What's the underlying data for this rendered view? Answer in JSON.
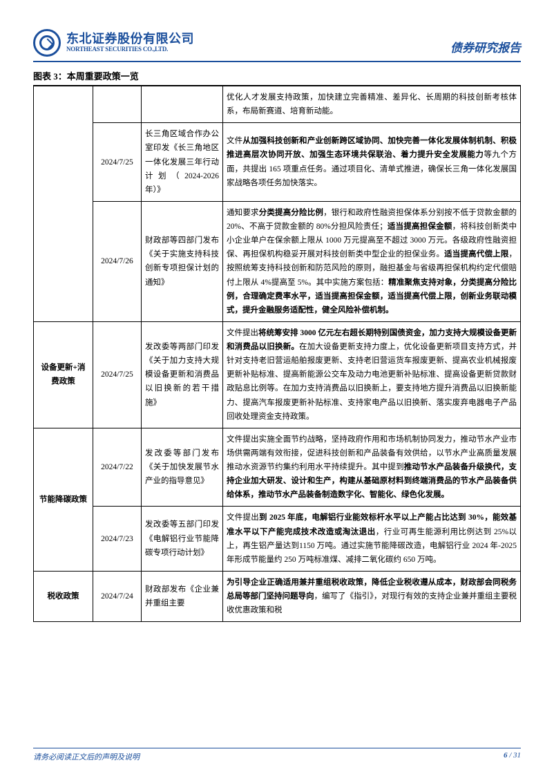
{
  "header": {
    "company_cn": "东北证券股份有限公司",
    "company_en": "NORTHEAST SECURITIES CO.,LTD.",
    "report_type": "债券研究报告"
  },
  "chart_title": "图表 3：本周重要政策一览",
  "rows": [
    {
      "category": "",
      "date": "",
      "source": "",
      "desc": "优化人才发展支持政策，加快建立完善精准、差异化、长周期的科技创新考核体系，布局新赛道、培育新动能。"
    },
    {
      "category": "",
      "date": "2024/7/25",
      "source": "长三角区域合作办公室印发《长三角地区一体化发展三年行动计划（2024-2026年）》",
      "desc": "文件<b>从加强科技创新和产业创新跨区域协同、加快完善一体化发展体制机制、积极推进高层次协同开放、加强生态环境共保联治、着力提升安全发展能力</b>等九个方面，共提出 165 项重点任务。通过项目化、清单式推进，确保长三角一体化发展国家战略各项任务加快落实。"
    },
    {
      "category": "",
      "date": "2024/7/26",
      "source": "财政部等四部门发布《关于实施支持科技创新专项担保计划的通知》",
      "desc": "通知要求<b>分类提高分险比例</b>，银行和政府性融资担保体系分别按不低于贷款金额的 20%、不高于贷款金额的 80%分担风险责任；<b>适当提高担保金额</b>，将科技创新类中小企业单户在保余额上限从 1000 万元提高至不超过 3000 万元。各级政府性融资担保、再担保机构稳妥开展对科技创新类中型企业的担保业务。<b>适当提高代偿上限</b>，按照统筹支持科技创新和防范风险的原则，融担基金与省级再担保机构约定代偿赔付上限从 4%提高至 5%。其中实施方案包括：<b>精准聚焦支持对象，分类提高分险比例，合理确定费率水平，适当提高担保金额，适当提高代偿上限，创新业务联动模式，提升金融服务适配性，健全风险补偿机制。</b>"
    },
    {
      "category": "设备更新+消费政策",
      "date": "2024/7/25",
      "source": "发改委等两部门印发《关于加力支持大规模设备更新和消费品以旧换新的若干措施》",
      "desc": "文件提出<b>将统筹安排 3000 亿元左右超长期特别国债资金，加力支持大规模设备更新和消费品以旧换新。</b>在加大设备更新支持力度上，优化设备更新项目支持方式，并针对支持老旧营运船舶报废更新、支持老旧营运货车报废更新、提高农业机械报废更新补贴标准、提高新能源公交车及动力电池更新补贴标准、提高设备更新贷款财政贴息比例等。在加力支持消费品以旧换新上，要支持地方提升消费品以旧换新能力、提高汽车报废更新补贴标准、支持家电产品以旧换新、落实废弃电器电子产品回收处理资金支持政策。"
    },
    {
      "category": "节能降碳政策",
      "date": "2024/7/22",
      "source": "发改委等部门发布《关于加快发展节水产业的指导意见》",
      "desc": "文件提出实施全面节约战略，坚持政府作用和市场机制协同发力，推动节水产业市场供需两端有效衔接，促进科技创新和产品装备有效供给，以节水产业高质量发展推动水资源节约集约利用水平持续提升。其中提到<b>推动节水产品装备升级换代，支持企业加大研发、设计和生产，构建从基础原材料到终端消费品的节水产品装备供给体系，推动节水产品装备制造数字化、智能化、绿色化发展。</b>"
    },
    {
      "category": "",
      "date": "2024/7/23",
      "source": "发改委等五部门印发《电解铝行业节能降碳专项行动计划》",
      "desc": "文件提出<b>到 2025 年底，电解铝行业能效标杆水平以上产能占比达到 30%，能效基准水平以下产能完成技术改造或淘汰退出</b>，行业可再生能源利用比例达到 25%以上，再生铝产量达到1150 万吨。通过实施节能降碳改造，电解铝行业 2024 年-2025年形成节能量约 250 万吨标准煤、减排二氧化碳约 650 万吨。"
    },
    {
      "category": "税收政策",
      "date": "2024/7/24",
      "source": "财政部发布《企业兼并重组主要",
      "desc": "<b>为引导企业正确适用兼并重组税收政策，降低企业税收遵从成本，财政部会同税务总局等部门坚持问题导向</b>，编写了《指引》，对现行有效的支持企业兼并重组主要税收优惠政策和税"
    }
  ],
  "footer": {
    "disclaimer": "请务必阅读正文后的声明及说明",
    "page_current": "6",
    "page_sep": " / ",
    "page_total": "31"
  },
  "colors": {
    "brand": "#1b4f9c",
    "border": "#000000",
    "background": "#ffffff"
  }
}
